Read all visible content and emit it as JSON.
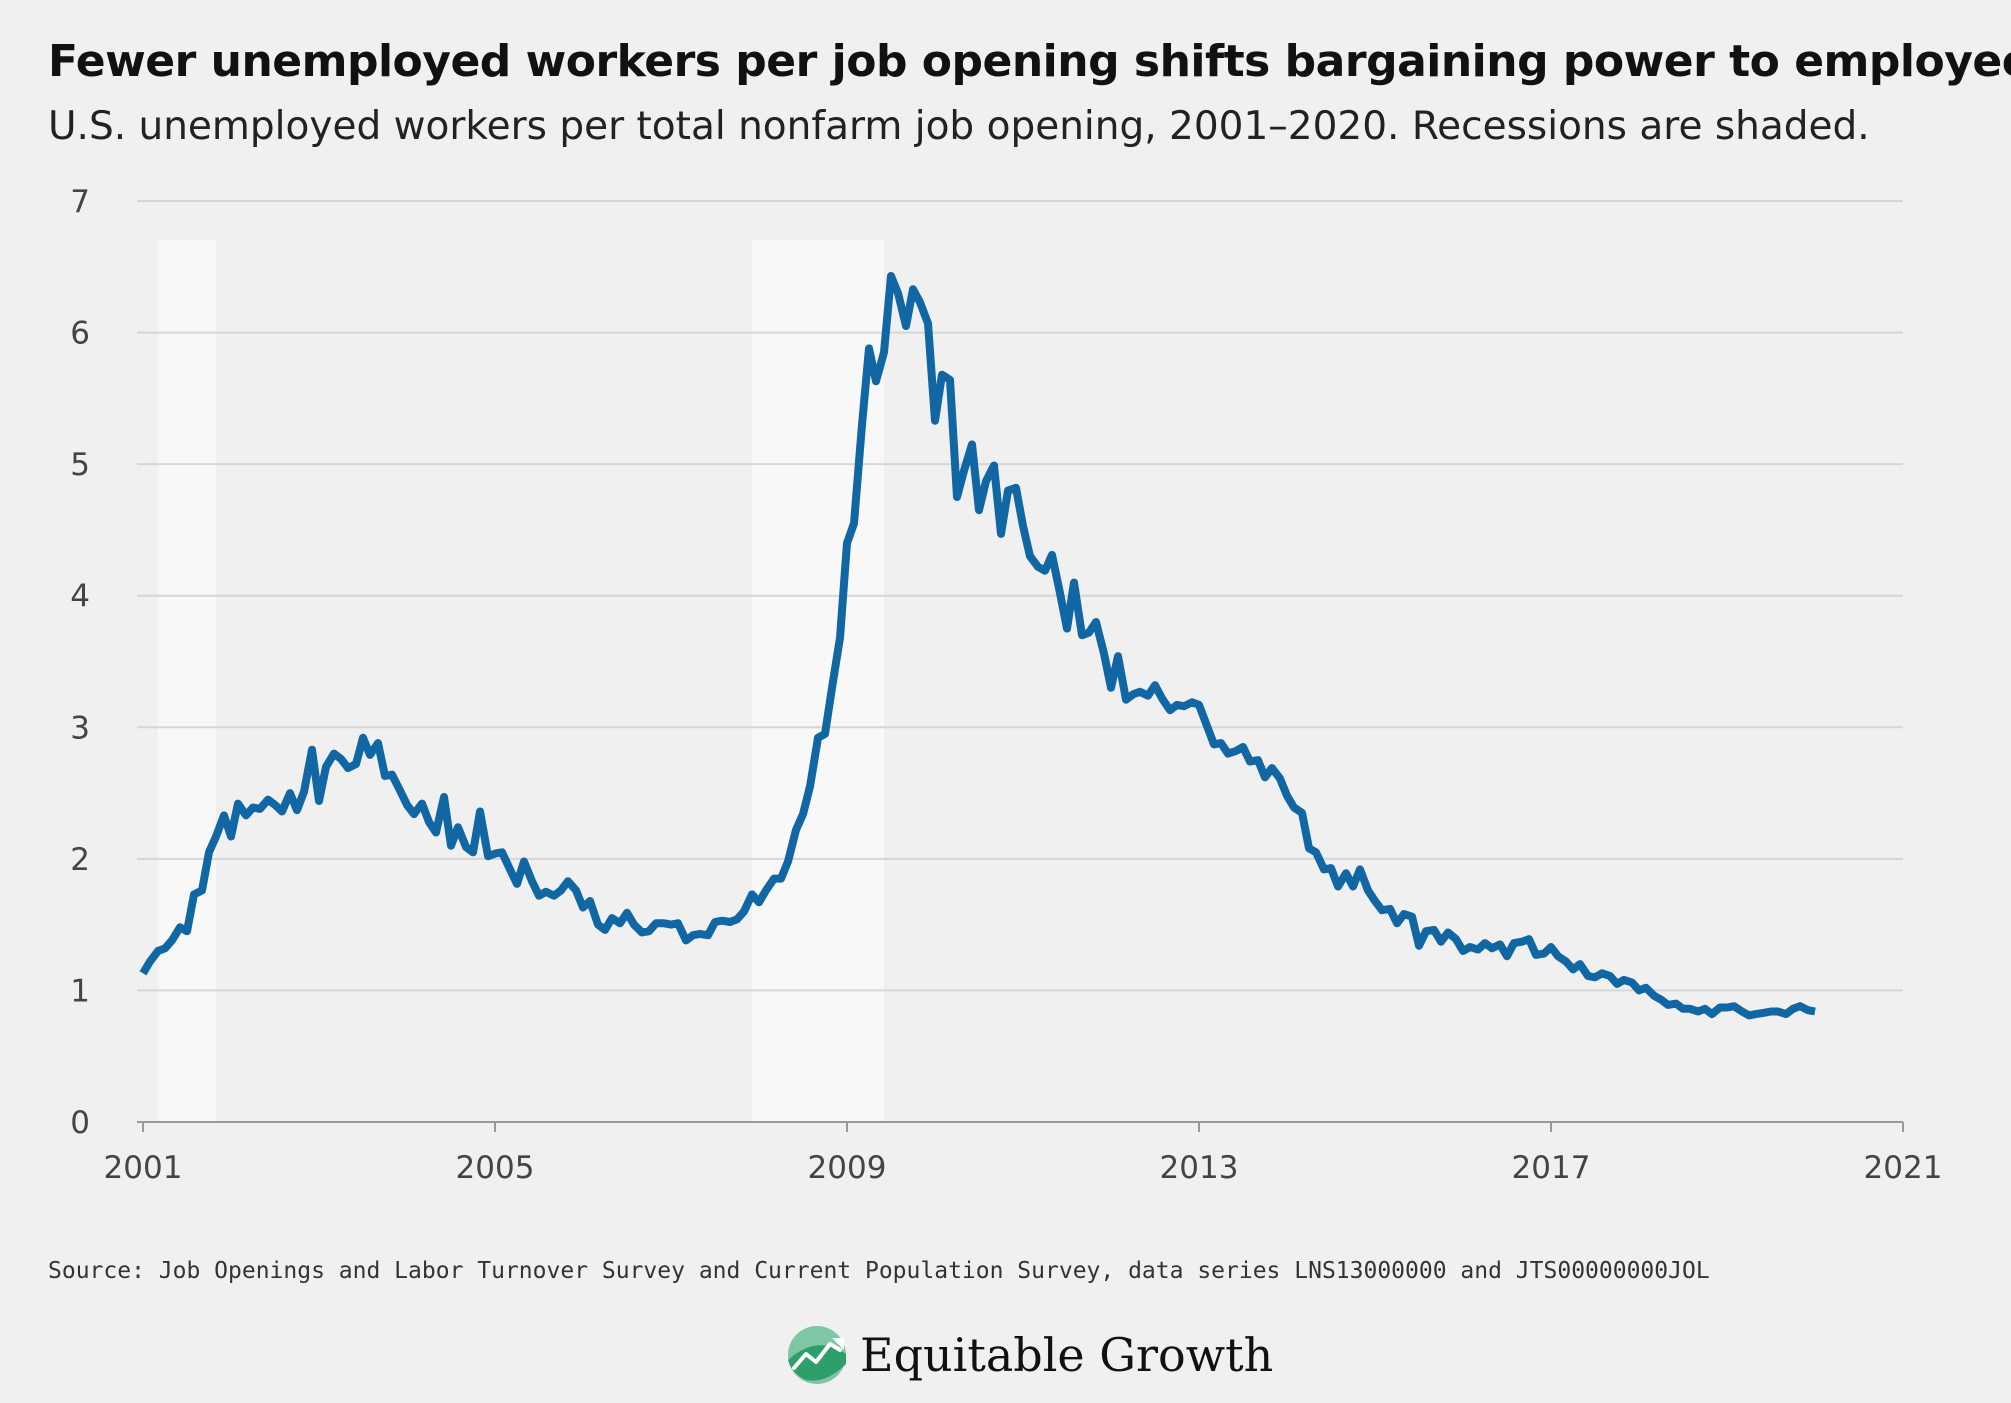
{
  "chart_data": {
    "type": "line",
    "title": "Fewer unemployed workers per job opening shifts bargaining power to employees",
    "subtitle": "U.S. unemployed workers per total nonfarm job opening, 2001–2020. Recessions are shaded.",
    "xlabel": "",
    "ylabel": "",
    "xlim": [
      2001,
      2021
    ],
    "ylim": [
      0,
      7
    ],
    "x_ticks": [
      "2001",
      "2005",
      "2009",
      "2013",
      "2017",
      "2021"
    ],
    "y_ticks": [
      "0",
      "1",
      "2",
      "3",
      "4",
      "5",
      "6",
      "7"
    ],
    "grid": true,
    "recessions": [
      [
        2001.17,
        2001.83
      ],
      [
        2007.92,
        2009.42
      ]
    ],
    "line_color": "#1167a3",
    "series": [
      {
        "x": [
          2001.0,
          2001.08,
          2001.17,
          2001.25,
          2001.33,
          2001.42,
          2001.5,
          2001.58,
          2001.67,
          2001.75,
          2001.83,
          2001.92,
          2002.0,
          2002.08,
          2002.17,
          2002.25,
          2002.33,
          2002.42,
          2002.5,
          2002.58,
          2002.67,
          2002.75,
          2002.83,
          2002.92,
          2003.0,
          2003.08,
          2003.17,
          2003.25,
          2003.33,
          2003.42,
          2003.5,
          2003.58,
          2003.67,
          2003.75,
          2003.83,
          2003.92,
          2004.0,
          2004.08,
          2004.17,
          2004.25,
          2004.33,
          2004.42,
          2004.5,
          2004.58,
          2004.67,
          2004.75,
          2004.83,
          2004.92,
          2005.0,
          2005.08,
          2005.17,
          2005.25,
          2005.33,
          2005.42,
          2005.5,
          2005.58,
          2005.67,
          2005.75,
          2005.83,
          2005.92,
          2006.0,
          2006.08,
          2006.17,
          2006.25,
          2006.33,
          2006.42,
          2006.5,
          2006.58,
          2006.67,
          2006.75,
          2006.83,
          2006.92,
          2007.0,
          2007.08,
          2007.17,
          2007.25,
          2007.33,
          2007.42,
          2007.5,
          2007.58,
          2007.67,
          2007.75,
          2007.83,
          2007.92,
          2008.0,
          2008.08,
          2008.17,
          2008.25,
          2008.33,
          2008.42,
          2008.5,
          2008.58,
          2008.67,
          2008.75,
          2008.83,
          2008.92,
          2009.0,
          2009.08,
          2009.17,
          2009.25,
          2009.33,
          2009.42,
          2009.5,
          2009.58,
          2009.67,
          2009.75,
          2009.83,
          2009.92,
          2010.0,
          2010.08,
          2010.17,
          2010.25,
          2010.33,
          2010.42,
          2010.5,
          2010.58,
          2010.67,
          2010.75,
          2010.83,
          2010.92,
          2011.0,
          2011.08,
          2011.17,
          2011.25,
          2011.33,
          2011.42,
          2011.5,
          2011.58,
          2011.67,
          2011.75,
          2011.83,
          2011.92,
          2012.0,
          2012.08,
          2012.17,
          2012.25,
          2012.33,
          2012.42,
          2012.5,
          2012.58,
          2012.67,
          2012.75,
          2012.83,
          2012.92,
          2013.0,
          2013.08,
          2013.17,
          2013.25,
          2013.33,
          2013.42,
          2013.5,
          2013.58,
          2013.67,
          2013.75,
          2013.83,
          2013.92,
          2014.0,
          2014.08,
          2014.17,
          2014.25,
          2014.33,
          2014.42,
          2014.5,
          2014.58,
          2014.67,
          2014.75,
          2014.83,
          2014.92,
          2015.0,
          2015.08,
          2015.17,
          2015.25,
          2015.33,
          2015.42,
          2015.5,
          2015.58,
          2015.67,
          2015.75,
          2015.83,
          2015.92,
          2016.0,
          2016.08,
          2016.17,
          2016.25,
          2016.33,
          2016.42,
          2016.5,
          2016.58,
          2016.67,
          2016.75,
          2016.83,
          2016.92,
          2017.0,
          2017.08,
          2017.17,
          2017.25,
          2017.33,
          2017.42,
          2017.5,
          2017.58,
          2017.67,
          2017.75,
          2017.83,
          2017.92,
          2018.0,
          2018.08,
          2018.17,
          2018.25,
          2018.33,
          2018.42,
          2018.5,
          2018.58,
          2018.67,
          2018.75,
          2018.83,
          2018.92,
          2019.0,
          2019.08,
          2019.17,
          2019.25,
          2019.33,
          2019.42,
          2019.5,
          2019.58,
          2019.67,
          2019.75,
          2019.83,
          2019.92,
          2020.0
        ],
        "y": [
          1.13,
          1.22,
          1.3,
          1.32,
          1.38,
          1.48,
          1.45,
          1.73,
          1.76,
          2.05,
          2.17,
          2.33,
          2.17,
          2.42,
          2.33,
          2.39,
          2.38,
          2.45,
          2.41,
          2.36,
          2.5,
          2.37,
          2.51,
          2.83,
          2.44,
          2.7,
          2.8,
          2.76,
          2.69,
          2.72,
          2.92,
          2.79,
          2.88,
          2.63,
          2.64,
          2.52,
          2.41,
          2.34,
          2.42,
          2.28,
          2.2,
          2.47,
          2.1,
          2.24,
          2.09,
          2.05,
          2.36,
          2.02,
          2.04,
          2.05,
          1.92,
          1.81,
          1.98,
          1.83,
          1.72,
          1.75,
          1.72,
          1.76,
          1.83,
          1.76,
          1.63,
          1.68,
          1.5,
          1.46,
          1.55,
          1.51,
          1.59,
          1.5,
          1.44,
          1.45,
          1.51,
          1.51,
          1.5,
          1.51,
          1.38,
          1.42,
          1.43,
          1.42,
          1.52,
          1.53,
          1.52,
          1.54,
          1.6,
          1.73,
          1.67,
          1.76,
          1.85,
          1.85,
          1.98,
          2.22,
          2.34,
          2.55,
          2.92,
          2.95,
          3.3,
          3.68,
          4.4,
          4.55,
          5.3,
          5.88,
          5.63,
          5.85,
          6.43,
          6.3,
          6.05,
          6.33,
          6.23,
          6.07,
          5.33,
          5.68,
          5.64,
          4.75,
          4.95,
          5.15,
          4.65,
          4.87,
          4.99,
          4.47,
          4.8,
          4.82,
          4.53,
          4.3,
          4.22,
          4.19,
          4.31,
          4.02,
          3.75,
          4.1,
          3.7,
          3.72,
          3.8,
          3.56,
          3.3,
          3.54,
          3.21,
          3.25,
          3.27,
          3.24,
          3.32,
          3.22,
          3.13,
          3.17,
          3.16,
          3.19,
          3.17,
          3.03,
          2.87,
          2.88,
          2.8,
          2.82,
          2.85,
          2.74,
          2.75,
          2.62,
          2.69,
          2.61,
          2.48,
          2.39,
          2.35,
          2.08,
          2.05,
          1.92,
          1.93,
          1.79,
          1.89,
          1.79,
          1.92,
          1.76,
          1.68,
          1.61,
          1.62,
          1.51,
          1.58,
          1.56,
          1.34,
          1.45,
          1.46,
          1.37,
          1.44,
          1.39,
          1.3,
          1.33,
          1.31,
          1.36,
          1.32,
          1.35,
          1.26,
          1.36,
          1.37,
          1.39,
          1.27,
          1.28,
          1.33,
          1.26,
          1.22,
          1.16,
          1.2,
          1.11,
          1.1,
          1.13,
          1.11,
          1.05,
          1.08,
          1.06,
          1.0,
          1.02,
          0.96,
          0.93,
          0.89,
          0.9,
          0.86,
          0.86,
          0.84,
          0.86,
          0.82,
          0.87,
          0.87,
          0.88,
          0.84,
          0.81,
          0.82,
          0.83,
          0.84,
          0.84,
          0.82,
          0.86,
          0.88,
          0.85,
          0.84
        ]
      }
    ]
  },
  "source": "Source: Job Openings and Labor Turnover Survey and Current Population Survey, data series LNS13000000 and JTS00000000JOL",
  "logo": {
    "text": "Equitable Growth",
    "icon": "equitable-growth-logo-icon",
    "colors": [
      "#2e9e6b",
      "#7fc6a4",
      "#1f6f4e"
    ]
  }
}
